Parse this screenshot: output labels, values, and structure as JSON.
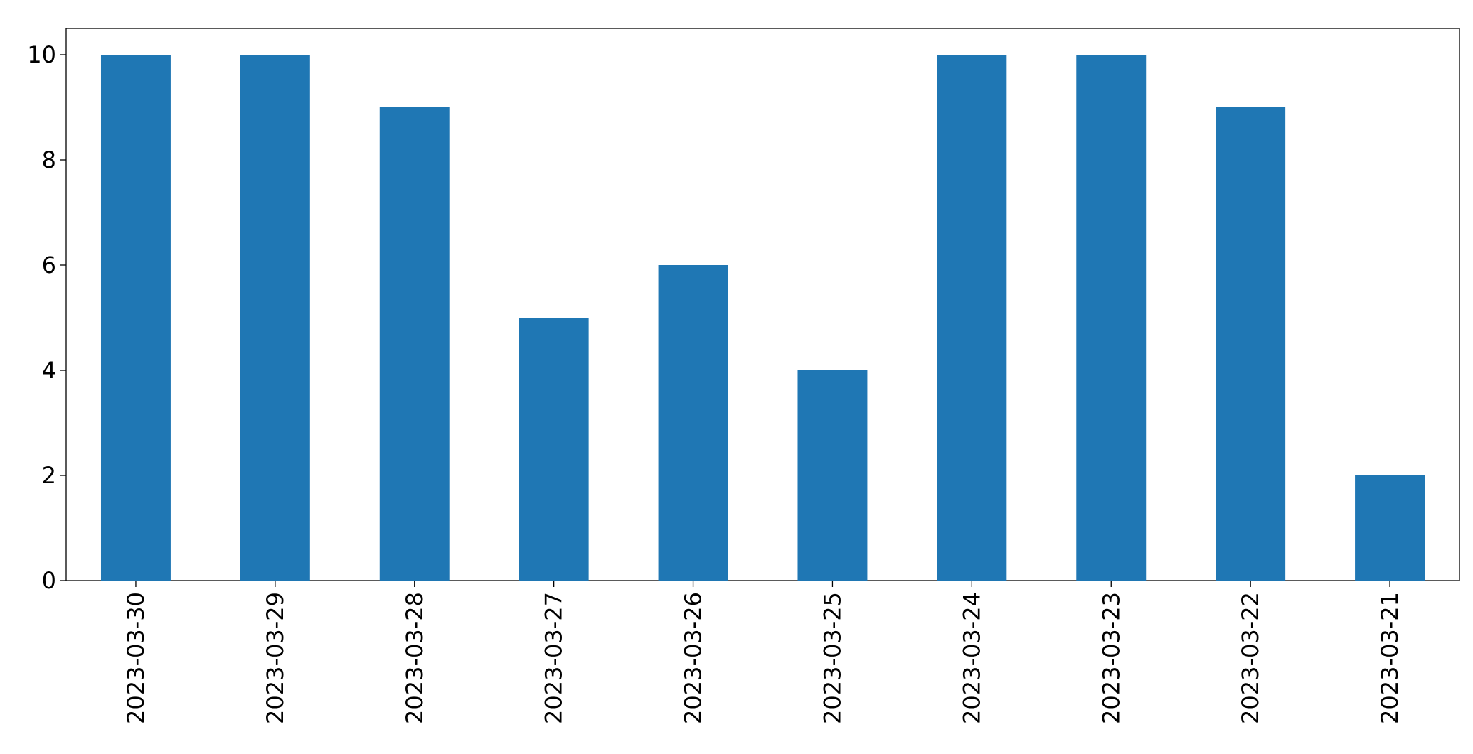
{
  "chart_data": {
    "type": "bar",
    "categories": [
      "2023-03-30",
      "2023-03-29",
      "2023-03-28",
      "2023-03-27",
      "2023-03-26",
      "2023-03-25",
      "2023-03-24",
      "2023-03-23",
      "2023-03-22",
      "2023-03-21"
    ],
    "values": [
      10,
      10,
      9,
      5,
      6,
      4,
      10,
      10,
      9,
      2
    ],
    "color": "#1f77b4",
    "ylim": [
      0,
      10.5
    ],
    "yticks": [
      0,
      2,
      4,
      6,
      8,
      10
    ],
    "grid": false
  }
}
